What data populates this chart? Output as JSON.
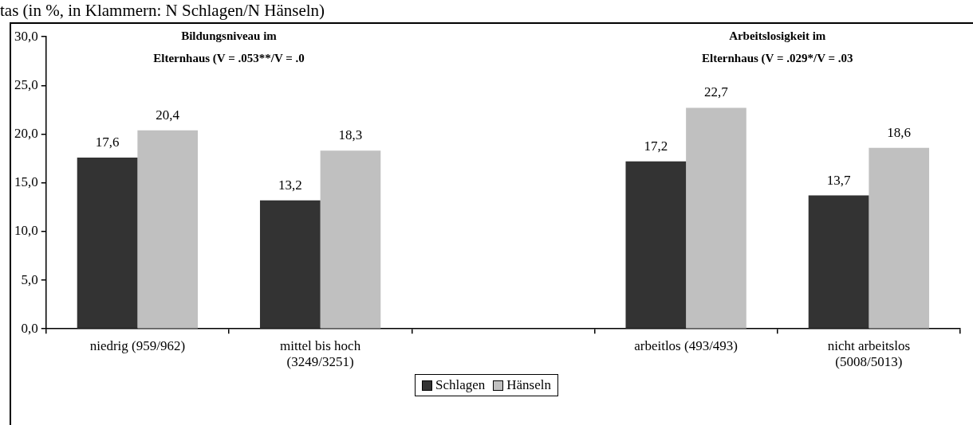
{
  "chart_data": {
    "type": "bar",
    "title": "tas (in %, in Klammern: N Schlagen/N Hänseln)",
    "annotations": [
      "Bildungsniveau im Elternhaus (V = .053**/V = .0",
      "Arbeitslosigkeit im Elternhaus (V = .029*/V = .03"
    ],
    "categories": [
      "niedrig (959/962)",
      "mittel bis hoch (3249/3251)",
      null,
      "arbeitlos (493/493)",
      "nicht arbeitslos (5008/5013)"
    ],
    "series": [
      {
        "name": "Schlagen",
        "color": "#333333",
        "values": [
          17.6,
          13.2,
          null,
          17.2,
          13.7
        ],
        "value_labels": [
          "17,6",
          "13,2",
          null,
          "17,2",
          "13,7"
        ]
      },
      {
        "name": "Hänseln",
        "color": "#c0c0c0",
        "values": [
          20.4,
          18.3,
          null,
          22.7,
          18.6
        ],
        "value_labels": [
          "20,4",
          "18,3",
          null,
          "22,7",
          "18,6"
        ]
      }
    ],
    "ylim": [
      0,
      30
    ],
    "yticks": [
      {
        "value": 0,
        "label": "0,0"
      },
      {
        "value": 5,
        "label": "5,0"
      },
      {
        "value": 10,
        "label": "10,0"
      },
      {
        "value": 15,
        "label": "15,0"
      },
      {
        "value": 20,
        "label": "20,0"
      },
      {
        "value": 25,
        "label": "25,0"
      },
      {
        "value": 30,
        "label": "30,0"
      }
    ],
    "grid": false,
    "legend": "bottom"
  }
}
